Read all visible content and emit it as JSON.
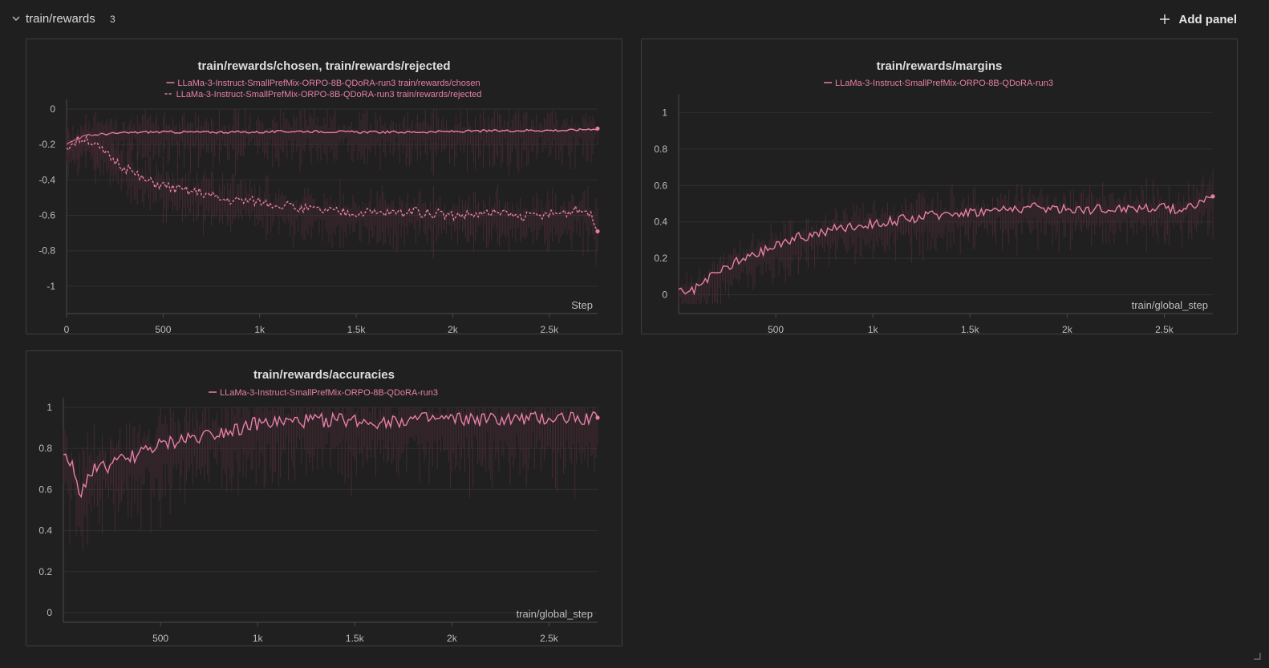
{
  "section": {
    "title": "train/rewards",
    "count": "3",
    "add_panel_label": "Add panel"
  },
  "colors": {
    "series": "#e77fa8",
    "noise": "#5a2f3d",
    "background": "#1f1f1f"
  },
  "icons": {
    "collapse": "chevron-down-icon",
    "add": "plus-icon",
    "resize": "resize-handle-icon"
  },
  "chart_data": [
    {
      "type": "line",
      "title": "train/rewards/chosen, train/rewards/rejected",
      "xlabel": "Step",
      "xlim": [
        0,
        2750
      ],
      "ylim": [
        -1.1,
        0
      ],
      "xticks": [
        0,
        500,
        1000,
        1500,
        2000,
        2500
      ],
      "xtick_labels": [
        "0",
        "500",
        "1k",
        "1.5k",
        "2k",
        "2.5k"
      ],
      "yticks": [
        0,
        -0.2,
        -0.4,
        -0.6,
        -0.8,
        -1
      ],
      "ytick_labels": [
        "0",
        "-0.2",
        "-0.4",
        "-0.6",
        "-0.8",
        "-1"
      ],
      "series": [
        {
          "name": "LLaMa-3-Instruct-SmallPrefMix-ORPO-8B-QDoRA-run3 train/rewards/chosen",
          "style": "solid",
          "x": [
            0,
            50,
            100,
            200,
            400,
            600,
            800,
            1000,
            1200,
            1500,
            1800,
            2100,
            2400,
            2600,
            2750
          ],
          "y": [
            -0.2,
            -0.17,
            -0.15,
            -0.14,
            -0.13,
            -0.13,
            -0.13,
            -0.13,
            -0.125,
            -0.13,
            -0.13,
            -0.125,
            -0.12,
            -0.12,
            -0.11
          ]
        },
        {
          "name": "LLaMa-3-Instruct-SmallPrefMix-ORPO-8B-QDoRA-run3 train/rewards/rejected",
          "style": "dashed",
          "x": [
            0,
            50,
            100,
            200,
            300,
            400,
            500,
            600,
            700,
            800,
            1000,
            1200,
            1400,
            1600,
            1800,
            2000,
            2200,
            2400,
            2600,
            2700,
            2750
          ],
          "y": [
            -0.22,
            -0.18,
            -0.16,
            -0.25,
            -0.33,
            -0.4,
            -0.43,
            -0.46,
            -0.47,
            -0.51,
            -0.52,
            -0.56,
            -0.58,
            -0.59,
            -0.58,
            -0.6,
            -0.59,
            -0.61,
            -0.58,
            -0.57,
            -0.69
          ]
        }
      ]
    },
    {
      "type": "line",
      "title": "train/rewards/margins",
      "xlabel": "train/global_step",
      "xlim": [
        0,
        2750
      ],
      "ylim": [
        -0.05,
        1.05
      ],
      "xticks": [
        500,
        1000,
        1500,
        2000,
        2500
      ],
      "xtick_labels": [
        "500",
        "1k",
        "1.5k",
        "2k",
        "2.5k"
      ],
      "yticks": [
        0,
        0.2,
        0.4,
        0.6,
        0.8,
        1
      ],
      "ytick_labels": [
        "0",
        "0.2",
        "0.4",
        "0.6",
        "0.8",
        "1"
      ],
      "series": [
        {
          "name": "LLaMa-3-Instruct-SmallPrefMix-ORPO-8B-QDoRA-run3",
          "style": "solid",
          "x": [
            0,
            50,
            100,
            200,
            300,
            400,
            500,
            600,
            700,
            800,
            1000,
            1200,
            1400,
            1600,
            1800,
            2000,
            2200,
            2400,
            2600,
            2750
          ],
          "y": [
            0.03,
            0.0,
            0.04,
            0.12,
            0.18,
            0.22,
            0.27,
            0.31,
            0.33,
            0.36,
            0.39,
            0.42,
            0.45,
            0.46,
            0.48,
            0.47,
            0.47,
            0.48,
            0.47,
            0.54
          ]
        }
      ]
    },
    {
      "type": "line",
      "title": "train/rewards/accuracies",
      "xlabel": "train/global_step",
      "xlim": [
        0,
        2750
      ],
      "ylim": [
        0,
        1
      ],
      "xticks": [
        500,
        1000,
        1500,
        2000,
        2500
      ],
      "xtick_labels": [
        "500",
        "1k",
        "1.5k",
        "2k",
        "2.5k"
      ],
      "yticks": [
        0,
        0.2,
        0.4,
        0.6,
        0.8,
        1
      ],
      "ytick_labels": [
        "0",
        "0.2",
        "0.4",
        "0.6",
        "0.8",
        "1"
      ],
      "series": [
        {
          "name": "LLaMa-3-Instruct-SmallPrefMix-ORPO-8B-QDoRA-run3",
          "style": "solid",
          "x": [
            0,
            50,
            80,
            150,
            250,
            350,
            450,
            600,
            800,
            1000,
            1200,
            1400,
            1600,
            1800,
            2000,
            2200,
            2400,
            2600,
            2750
          ],
          "y": [
            0.77,
            0.7,
            0.57,
            0.7,
            0.72,
            0.76,
            0.8,
            0.84,
            0.88,
            0.92,
            0.93,
            0.94,
            0.93,
            0.94,
            0.94,
            0.94,
            0.94,
            0.95,
            0.95
          ]
        }
      ]
    }
  ]
}
